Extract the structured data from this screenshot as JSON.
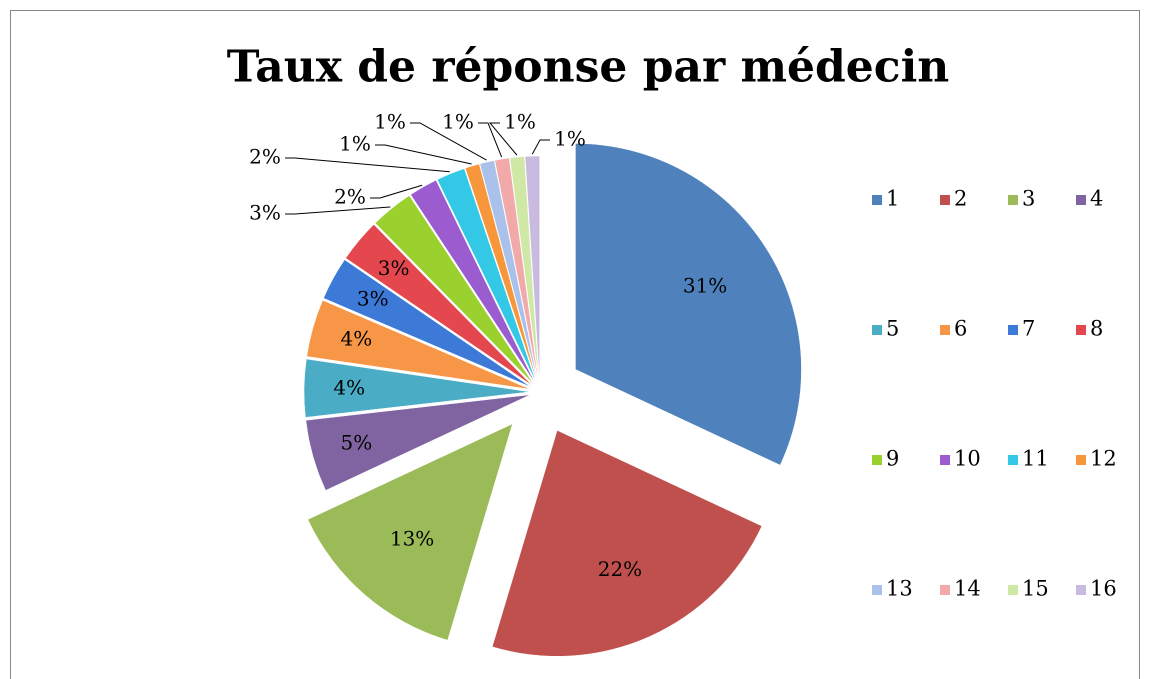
{
  "chart_data": {
    "type": "pie",
    "title": "Taux de réponse par médecin",
    "categories": [
      "1",
      "2",
      "3",
      "4",
      "5",
      "6",
      "7",
      "8",
      "9",
      "10",
      "11",
      "12",
      "13",
      "14",
      "15",
      "16"
    ],
    "values": [
      31,
      22,
      13,
      5,
      4,
      4,
      3,
      3,
      3,
      2,
      2,
      1,
      1,
      1,
      1,
      1
    ],
    "value_labels": [
      "31%",
      "22%",
      "13%",
      "5%",
      "4%",
      "4%",
      "3%",
      "3%",
      "3%",
      "2%",
      "2%",
      "1%",
      "1%",
      "1%",
      "1%",
      "1%"
    ],
    "colors": [
      "#4f81bd",
      "#c0504d",
      "#9bbb59",
      "#8064a2",
      "#4bacc6",
      "#f79646",
      "#3d7ad8",
      "#e4474e",
      "#9bd12e",
      "#9a5ccf",
      "#33c9e6",
      "#f7963a",
      "#a9c1eb",
      "#f2a9a9",
      "#cfe8a6",
      "#c9badf"
    ],
    "legend": "right"
  }
}
